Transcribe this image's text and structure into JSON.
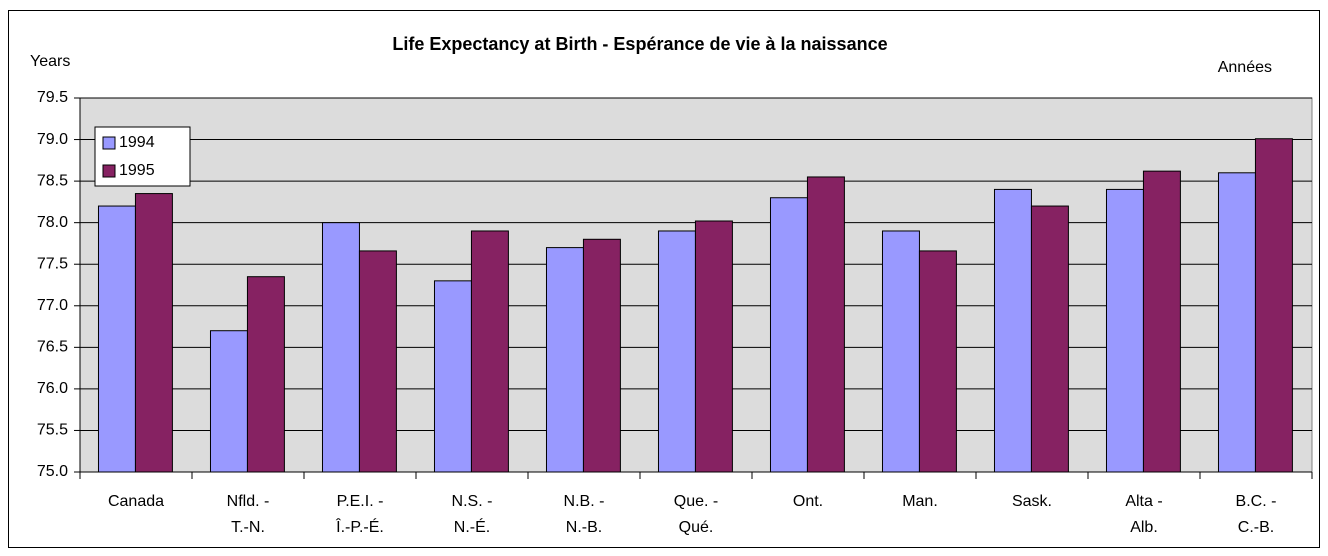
{
  "chart_data": {
    "type": "bar",
    "title": "Life Expectancy at Birth - Espérance de vie à la naissance",
    "y_label_left": "Years",
    "y_label_right": "Années",
    "categories": [
      [
        "Canada"
      ],
      [
        "Nfld. -",
        "T.-N."
      ],
      [
        "P.E.I. -",
        "Î.-P.-É."
      ],
      [
        "N.S. -",
        "N.-É."
      ],
      [
        "N.B. -",
        "N.-B."
      ],
      [
        "Que. -",
        "Qué."
      ],
      [
        "Ont."
      ],
      [
        "Man."
      ],
      [
        "Sask."
      ],
      [
        "Alta -",
        "Alb."
      ],
      [
        "B.C. -",
        "C.-B."
      ]
    ],
    "series": [
      {
        "name": "1994",
        "color": "#9999ff",
        "values": [
          78.2,
          76.7,
          78.0,
          77.3,
          77.7,
          77.9,
          78.3,
          77.9,
          78.4,
          78.4,
          78.6
        ]
      },
      {
        "name": "1995",
        "color": "#862262",
        "values": [
          78.35,
          77.35,
          77.66,
          77.9,
          77.8,
          78.02,
          78.55,
          77.66,
          78.2,
          78.62,
          79.01
        ]
      }
    ],
    "ylim": [
      75.0,
      79.5
    ],
    "yticks": [
      {
        "value": 75,
        "label": "75.0"
      },
      {
        "value": 75.5,
        "label": "75.5"
      },
      {
        "value": 76,
        "label": "76.0"
      },
      {
        "value": 76.5,
        "label": "76.5"
      },
      {
        "value": 77,
        "label": "77.0"
      },
      {
        "value": 77.5,
        "label": "77.5"
      },
      {
        "value": 78,
        "label": "78.0"
      },
      {
        "value": 78.5,
        "label": "78.5"
      },
      {
        "value": 79,
        "label": "79.0"
      },
      {
        "value": 79.5,
        "label": "79.5"
      }
    ],
    "grid": true,
    "legend": "upper left"
  }
}
